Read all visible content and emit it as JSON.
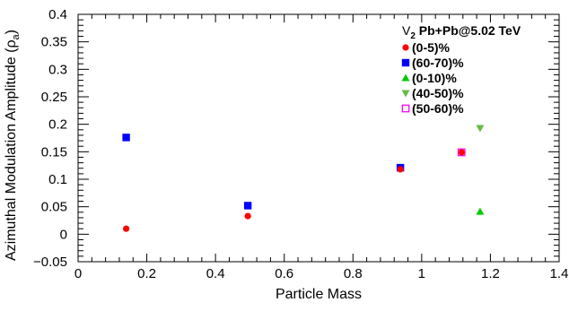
{
  "chart_data": {
    "type": "scatter",
    "xlabel": "Particle Mass",
    "ylabel": "Azimuthal Modulation Amplitude (ρ",
    "ylabel_sub": "a",
    "ylabel_close": ")",
    "xlim": [
      0,
      1.4
    ],
    "ylim": [
      -0.05,
      0.4
    ],
    "x_ticks": [
      0,
      0.2,
      0.4,
      0.6,
      0.8,
      1,
      1.2,
      1.4
    ],
    "x_tick_labels": [
      "0",
      "0.2",
      "0.4",
      "0.6",
      "0.8",
      "1",
      "1.2",
      "1.4"
    ],
    "y_ticks": [
      -0.05,
      0,
      0.05,
      0.1,
      0.15,
      0.2,
      0.25,
      0.3,
      0.35,
      0.4
    ],
    "y_tick_labels": [
      "−0.05",
      "0",
      "0.05",
      "0.1",
      "0.15",
      "0.2",
      "0.25",
      "0.3",
      "0.35",
      "0.4"
    ],
    "grid": false,
    "legend": {
      "placement": "top-right",
      "title_v": "V",
      "title_sub": "2",
      "title_rest": " Pb+Pb@5.02 TeV"
    },
    "series": [
      {
        "name": "(0-5)%",
        "marker": "circle",
        "color": "#ff0000",
        "points": [
          [
            0.14,
            0.01
          ],
          [
            0.494,
            0.033
          ],
          [
            0.938,
            0.118
          ],
          [
            1.116,
            0.149
          ]
        ]
      },
      {
        "name": "(60-70)%",
        "marker": "square",
        "color": "#0000ff",
        "points": [
          [
            0.14,
            0.176
          ],
          [
            0.494,
            0.052
          ],
          [
            0.938,
            0.121
          ]
        ]
      },
      {
        "name": "(0-10)%",
        "marker": "triangle-up",
        "color": "#00cc00",
        "points": [
          [
            1.17,
            0.041
          ]
        ]
      },
      {
        "name": "(40-50)%",
        "marker": "triangle-down",
        "color": "#66bb44",
        "points": [
          [
            1.17,
            0.193
          ]
        ]
      },
      {
        "name": "(50-60)%",
        "marker": "open-square",
        "color": "#ff00ff",
        "points": [
          [
            1.116,
            0.149
          ]
        ]
      }
    ]
  }
}
